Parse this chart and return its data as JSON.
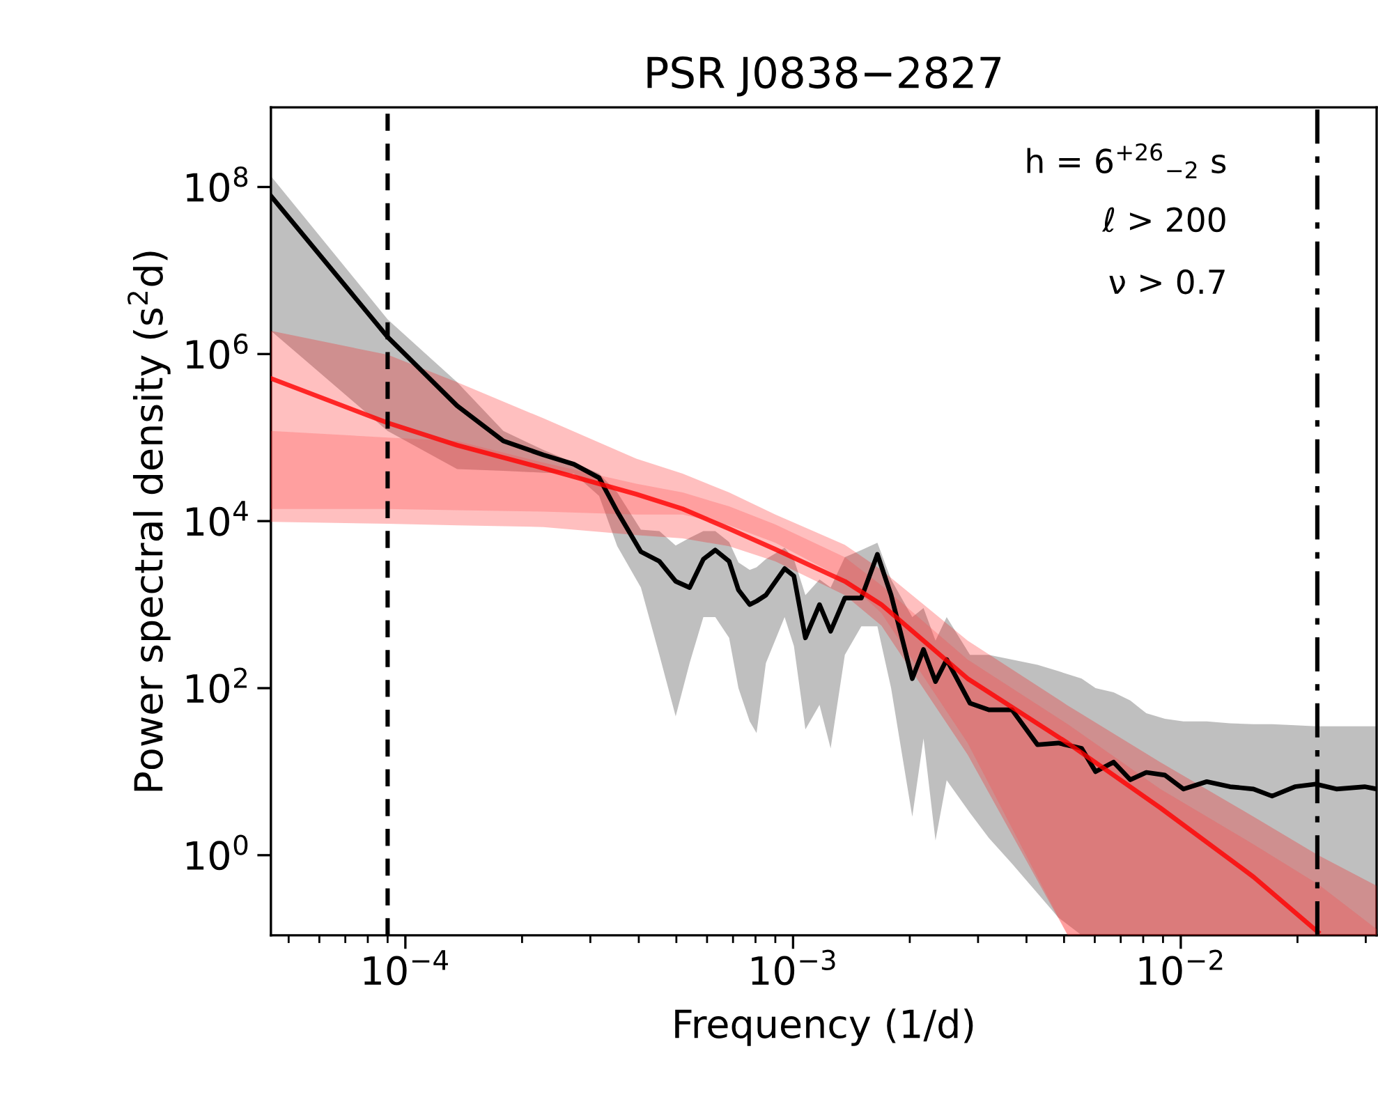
{
  "chart_data": {
    "type": "line",
    "title": "PSR J0838−2827",
    "xlabel": "Frequency (1/d)",
    "ylabel": "Power spectral density (s$^{2}$d)",
    "log": "xy",
    "grid": false,
    "legend": false,
    "marker": "none",
    "xlim": [
      4.5e-05,
      0.032
    ],
    "ylim": [
      0.11,
      900000000.0
    ],
    "xticks": [
      {
        "value": 0.0001,
        "label": "10$^{−4}$"
      },
      {
        "value": 0.001,
        "label": "10$^{−3}$"
      },
      {
        "value": 0.01,
        "label": "10$^{−2}$"
      }
    ],
    "yticks": [
      {
        "value": 1,
        "label": "10$^{0}$"
      },
      {
        "value": 100,
        "label": "10$^{2}$"
      },
      {
        "value": 10000,
        "label": "10$^{4}$"
      },
      {
        "value": 1000000,
        "label": "10$^{6}$"
      },
      {
        "value": 100000000,
        "label": "10$^{8}$"
      }
    ],
    "series": [
      {
        "color": "#000000",
        "line_style": "solid",
        "x": [
          4.5e-05,
          9e-05,
          0.000136,
          0.000179,
          0.000227,
          0.000272,
          0.000316,
          0.000352,
          0.000405,
          0.000452,
          0.000498,
          0.000541,
          0.000587,
          0.00063,
          0.000684,
          0.000723,
          0.000773,
          0.000805,
          0.000851,
          0.000951,
          0.001005,
          0.001076,
          0.00117,
          0.00125,
          0.00136,
          0.0015,
          0.00165,
          0.00179,
          0.00203,
          0.00217,
          0.00233,
          0.00249,
          0.00286,
          0.0032,
          0.00367,
          0.00427,
          0.00483,
          0.00555,
          0.00603,
          0.00671,
          0.00741,
          0.00815,
          0.0091,
          0.01016,
          0.01167,
          0.0134,
          0.0154,
          0.0172,
          0.0197,
          0.0223,
          0.0252,
          0.0298,
          0.032
        ],
        "values": [
          78000000.0,
          1600000.0,
          240000.0,
          91000.0,
          62000.0,
          48000.0,
          33000.0,
          13000.0,
          4300,
          3300,
          1900,
          1600,
          3500,
          4500,
          3300,
          1500,
          1000,
          1100,
          1300,
          2700,
          2200,
          400,
          1000,
          480,
          1200,
          1200,
          4000,
          1300,
          130,
          290,
          120,
          220,
          66,
          55,
          55,
          21,
          22,
          19,
          10,
          13,
          8.0,
          9.8,
          9.1,
          6.2,
          7.6,
          6.6,
          6.2,
          5.1,
          6.6,
          7.1,
          6.2,
          6.6,
          6.2
        ],
        "upper": [
          135000000.0,
          2600000.0,
          460000.0,
          120000.0,
          71000.0,
          50000.0,
          37000.0,
          22000.0,
          7900,
          7600,
          5100,
          6300,
          7600,
          7600,
          5600,
          3200,
          2600,
          2800,
          3500,
          4800,
          3500,
          1300,
          2000,
          1600,
          3700,
          4500,
          5500,
          2000,
          710,
          910,
          370,
          710,
          250,
          250,
          220,
          190,
          160,
          130,
          100,
          89,
          71,
          50,
          43,
          40,
          40,
          38,
          37,
          37,
          36,
          35,
          35,
          35,
          35
        ],
        "lower": [
          1900000.0,
          120000.0,
          42000.0,
          40000.0,
          38000.0,
          37000.0,
          20000.0,
          5000,
          1600,
          250,
          46,
          200,
          710,
          710,
          400,
          100,
          40,
          29,
          200,
          710,
          320,
          32,
          63,
          19,
          250,
          550,
          550,
          100,
          2.9,
          25,
          1.5,
          7.9,
          3.2,
          1.6,
          0.79,
          0.35,
          0.18,
          0.11,
          0.11,
          0.11,
          0.11,
          0.11,
          0.11,
          0.11,
          0.11,
          0.11,
          0.11,
          0.11,
          0.11,
          0.11,
          0.11,
          0.11,
          0.11
        ]
      },
      {
        "color": "#ff0000",
        "line_style": "solid",
        "x": [
          4.5e-05,
          9e-05,
          0.000136,
          0.000227,
          0.000394,
          0.000519,
          0.000684,
          0.0009,
          0.00136,
          0.00169,
          0.00282,
          0.00511,
          0.00885,
          0.0154,
          0.0226,
          0.032
        ],
        "values": [
          510000.0,
          150000.0,
          81000.0,
          43000.0,
          21000.0,
          14000.0,
          8100,
          4600,
          1900,
          1000,
          130,
          22,
          3.7,
          0.55,
          0.12,
          null
        ],
        "upper": [
          1900000.0,
          980000.0,
          460000.0,
          170000.0,
          56000.0,
          37000.0,
          22000.0,
          12000.0,
          5200,
          2600,
          370,
          62,
          13,
          2.9,
          1.0,
          0.43
        ],
        "lower": [
          9800,
          9300,
          8900,
          8500,
          6800,
          6200,
          5000,
          3300,
          1300,
          560,
          16,
          0.11,
          0.11,
          0.11,
          0.11,
          0.11
        ]
      },
      {
        "color": "#ff4040",
        "line_style": "solid",
        "x": [
          4.5e-05,
          9e-05,
          0.000136,
          0.000227,
          0.000394,
          0.000519,
          0.000684,
          0.0009,
          0.00136,
          0.00169,
          0.00282,
          0.00511,
          0.00885,
          0.0154,
          0.0226,
          0.032
        ],
        "values": [
          null,
          null,
          null,
          null,
          null,
          null,
          null,
          null,
          null,
          null,
          null,
          null,
          null,
          null,
          null,
          null
        ],
        "upper": [
          120000.0,
          100000.0,
          91000.0,
          50000.0,
          28000.0,
          22000.0,
          15000.0,
          9100,
          3700,
          1700,
          220,
          37,
          6.2,
          1.35,
          0.45,
          0.13
        ],
        "lower": [
          14000.0,
          14000.0,
          13500.0,
          13000.0,
          12000.0,
          12000.0,
          8900,
          5500,
          2000,
          790,
          22,
          0.11,
          0.11,
          0.11,
          0.11,
          0.11
        ]
      }
    ],
    "ref_lines": [
      {
        "axis": "x",
        "value": 9e-05,
        "color": "#000000",
        "line_style": "dashed"
      },
      {
        "axis": "x",
        "value": 0.0225,
        "color": "#000000",
        "line_style": "dashdot"
      }
    ],
    "annotations": [
      "h = 6$^{+26}$$_{−2}$ s",
      "ℓ > 200",
      "ν > 0.7"
    ]
  }
}
